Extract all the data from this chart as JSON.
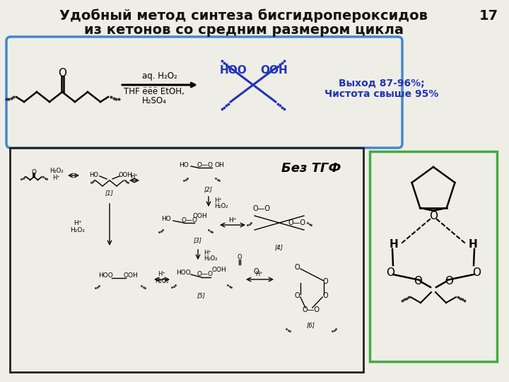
{
  "title_line1": "Удобный метод синтеза бисгидропероксидов",
  "title_line2": "из кетонов со средним размером цикла",
  "page_number": "17",
  "bg_color": "#eeeee6",
  "upper_box_color": "#4488cc",
  "lower_box_color": "#222222",
  "green_box_color": "#44aa44",
  "reagent_text1": "aq. H₂O₂",
  "reagent_text2": "THF ёёё EtOH,",
  "reagent_text3": "H₂SO₄",
  "product_text1": "HOO",
  "product_text2": "OOH",
  "yield_text1": "Выход 87-96%;",
  "yield_text2": "Чистота свыше 95%",
  "bez_tgf_text": "Без ТГФ",
  "text_color": "#111111",
  "blue_color": "#2233bb",
  "dark_color": "#111111"
}
